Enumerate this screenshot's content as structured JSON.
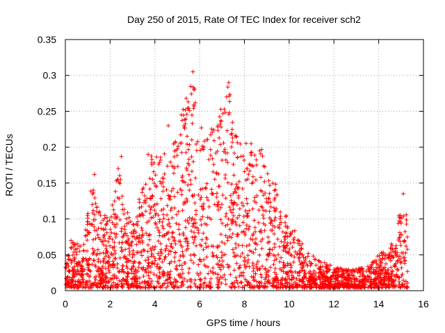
{
  "chart_data": {
    "type": "scatter",
    "title": "Day 250 of 2015, Rate Of TEC Index for receiver sch2",
    "xlabel": "GPS time / hours",
    "ylabel": "ROTI / TECUs",
    "xlim": [
      0,
      16
    ],
    "ylim": [
      0,
      0.35
    ],
    "xticks": [
      0,
      2,
      4,
      6,
      8,
      10,
      12,
      14,
      16
    ],
    "yticks": [
      0,
      0.05,
      0.1,
      0.15,
      0.2,
      0.25,
      0.3,
      0.35
    ],
    "xtick_labels": [
      "0",
      "2",
      "4",
      "6",
      "8",
      "10",
      "12",
      "14",
      "16"
    ],
    "ytick_labels": [
      "0",
      "0.05",
      "0.1",
      "0.15",
      "0.2",
      "0.25",
      "0.3",
      "0.35"
    ],
    "grid": true,
    "marker": "+",
    "color": "#ff0000",
    "x_data_range": [
      0,
      15.3
    ],
    "envelope": {
      "description": "approximate upper envelope of ROTI values vs GPS time",
      "x": [
        0,
        0.3,
        0.8,
        1.2,
        1.4,
        1.7,
        2.0,
        2.4,
        2.6,
        3.0,
        3.4,
        3.8,
        4.2,
        4.6,
        5.0,
        5.4,
        5.7,
        6.0,
        6.3,
        6.7,
        7.0,
        7.3,
        7.6,
        8.0,
        8.4,
        8.8,
        9.2,
        9.6,
        10.0,
        10.5,
        11.0,
        11.5,
        12.0,
        12.5,
        13.0,
        13.5,
        14.0,
        14.4,
        14.8,
        15.0,
        15.3
      ],
      "y": [
        0.04,
        0.07,
        0.06,
        0.16,
        0.13,
        0.11,
        0.1,
        0.18,
        0.12,
        0.1,
        0.14,
        0.19,
        0.19,
        0.2,
        0.24,
        0.26,
        0.3,
        0.23,
        0.22,
        0.24,
        0.27,
        0.29,
        0.22,
        0.21,
        0.19,
        0.2,
        0.16,
        0.14,
        0.1,
        0.07,
        0.05,
        0.04,
        0.035,
        0.03,
        0.03,
        0.035,
        0.05,
        0.06,
        0.08,
        0.13,
        0.12
      ]
    },
    "series": [
      {
        "name": "ROTI",
        "points": [
          [
            5.7,
            0.305
          ],
          [
            7.3,
            0.29
          ],
          [
            7.2,
            0.27
          ],
          [
            5.4,
            0.268
          ],
          [
            4.6,
            0.23
          ],
          [
            8.3,
            0.205
          ],
          [
            3.7,
            0.19
          ],
          [
            2.5,
            0.187
          ],
          [
            1.3,
            0.162
          ],
          [
            15.1,
            0.135
          ],
          [
            0.25,
            0.07
          ]
        ]
      }
    ]
  }
}
